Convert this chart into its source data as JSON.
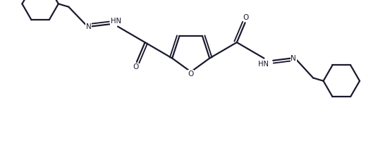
{
  "background_color": "#ffffff",
  "line_color": "#1a1a2e",
  "line_width": 1.6,
  "fig_width": 5.36,
  "fig_height": 2.0,
  "dpi": 100,
  "xlim": [
    0,
    10
  ],
  "ylim": [
    0,
    3.73
  ]
}
